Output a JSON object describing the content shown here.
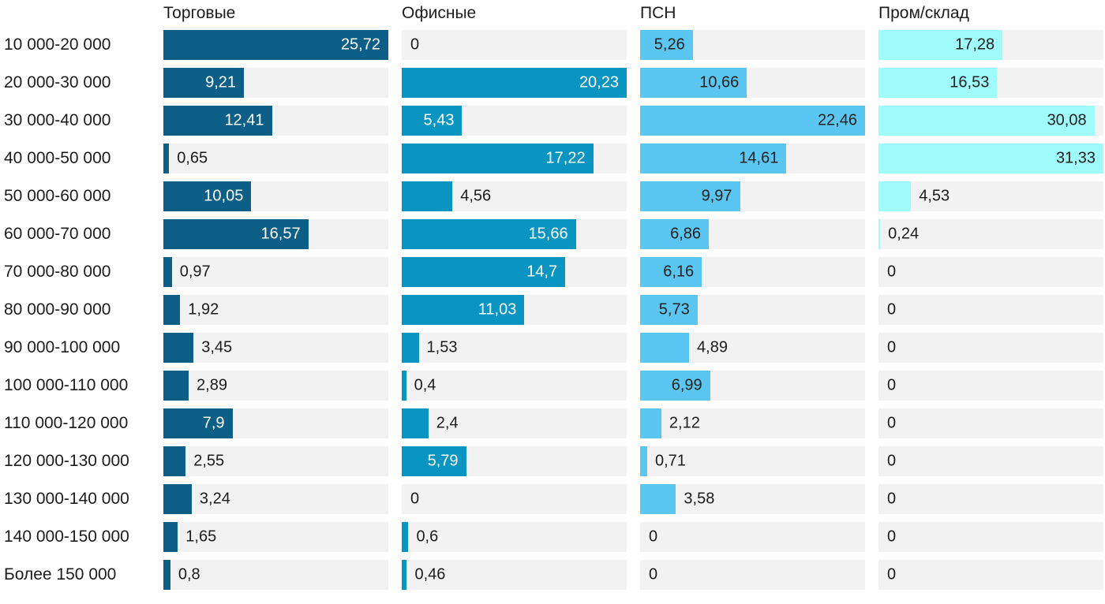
{
  "chart_data": {
    "type": "bar",
    "orientation": "horizontal",
    "layout": {
      "grid": false,
      "legend_position": "none",
      "small_multiples": 4,
      "scaling": "each column scaled independently; bar width = value / column max",
      "inside_label_threshold": 0.23,
      "decimal_separator": ","
    },
    "title": "",
    "xlabel": "",
    "ylabel": "",
    "track_color": "#f2f2f2",
    "text_color": "#1c1c1c",
    "categories": [
      "10 000-20 000",
      "20 000-30 000",
      "30 000-40 000",
      "40 000-50 000",
      "50 000-60 000",
      "60 000-70 000",
      "70 000-80 000",
      "80 000-90 000",
      "90 000-100 000",
      "100 000-110 000",
      "110 000-120 000",
      "120 000-130 000",
      "130 000-140 000",
      "140 000-150 000",
      "Более 150 000"
    ],
    "series": [
      {
        "name": "Торговые",
        "color": "#0d5f87",
        "inside_label_color": "#ffffff",
        "max": 25.72,
        "values": [
          25.72,
          9.21,
          12.41,
          0.65,
          10.05,
          16.57,
          0.97,
          1.92,
          3.45,
          2.89,
          7.9,
          2.55,
          3.24,
          1.65,
          0.8
        ]
      },
      {
        "name": "Офисные",
        "color": "#0a94c2",
        "inside_label_color": "#ffffff",
        "max": 20.23,
        "values": [
          0,
          20.23,
          5.43,
          17.22,
          4.56,
          15.66,
          14.7,
          11.03,
          1.53,
          0.4,
          2.4,
          5.79,
          0,
          0.6,
          0.46
        ]
      },
      {
        "name": "ПСН",
        "color": "#5cc6f3",
        "inside_label_color": "#212121",
        "max": 22.46,
        "values": [
          5.26,
          10.66,
          22.46,
          14.61,
          9.97,
          6.86,
          6.16,
          5.73,
          4.89,
          6.99,
          2.12,
          0.71,
          3.58,
          0,
          0
        ]
      },
      {
        "name": "Пром/склад",
        "color": "#9ffcfa",
        "inside_label_color": "#212121",
        "max": 31.33,
        "values": [
          17.28,
          16.53,
          30.08,
          31.33,
          4.53,
          0.24,
          0,
          0,
          0,
          0,
          0,
          0,
          0,
          0,
          0
        ]
      }
    ]
  }
}
